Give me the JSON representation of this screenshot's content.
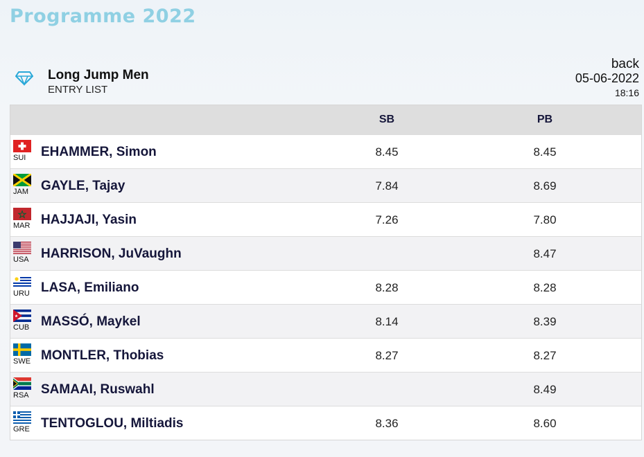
{
  "page": {
    "title": "Programme 2022"
  },
  "event": {
    "name": "Long Jump Men",
    "subtitle": "ENTRY LIST",
    "back_label": "back",
    "date": "05-06-2022",
    "time": "18:16"
  },
  "table": {
    "columns": {
      "sb": "SB",
      "pb": "PB"
    },
    "rows": [
      {
        "country": "SUI",
        "flag": "switzerland-flag-icon",
        "name": "EHAMMER, Simon",
        "sb": "8.45",
        "pb": "8.45"
      },
      {
        "country": "JAM",
        "flag": "jamaica-flag-icon",
        "name": "GAYLE, Tajay",
        "sb": "7.84",
        "pb": "8.69"
      },
      {
        "country": "MAR",
        "flag": "morocco-flag-icon",
        "name": "HAJJAJI, Yasin",
        "sb": "7.26",
        "pb": "7.80"
      },
      {
        "country": "USA",
        "flag": "usa-flag-icon",
        "name": "HARRISON, JuVaughn",
        "sb": "",
        "pb": "8.47"
      },
      {
        "country": "URU",
        "flag": "uruguay-flag-icon",
        "name": "LASA, Emiliano",
        "sb": "8.28",
        "pb": "8.28"
      },
      {
        "country": "CUB",
        "flag": "cuba-flag-icon",
        "name": "MASSÓ, Maykel",
        "sb": "8.14",
        "pb": "8.39"
      },
      {
        "country": "SWE",
        "flag": "sweden-flag-icon",
        "name": "MONTLER, Thobias",
        "sb": "8.27",
        "pb": "8.27"
      },
      {
        "country": "RSA",
        "flag": "south-africa-flag-icon",
        "name": "SAMAAI, Ruswahl",
        "sb": "",
        "pb": "8.49"
      },
      {
        "country": "GRE",
        "flag": "greece-flag-icon",
        "name": "TENTOGLOU, Miltiadis",
        "sb": "8.36",
        "pb": "8.60"
      }
    ]
  },
  "colors": {
    "title": "#8fd0e3",
    "header_bg": "#dedede",
    "text": "#15163a",
    "diamond": "#29a8d8"
  }
}
